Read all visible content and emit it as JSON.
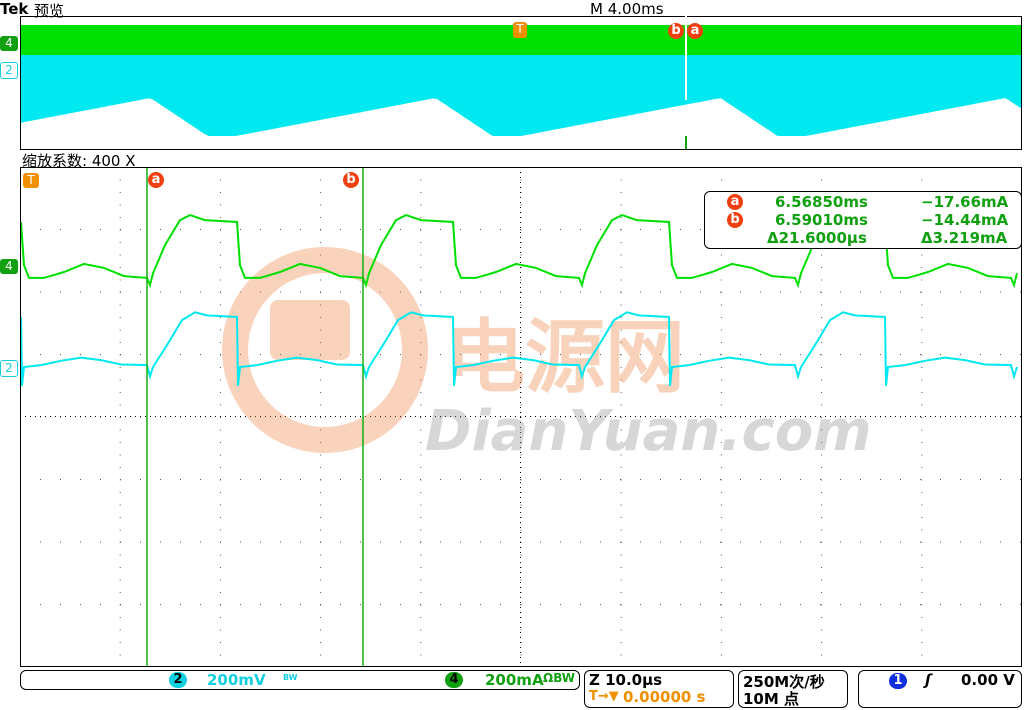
{
  "header": {
    "brand": "Tek",
    "mode": "预览",
    "timebase": "M 4.00ms"
  },
  "zoom": {
    "label": "缩放系数: 400 X"
  },
  "markers": {
    "ch4": "4",
    "ch2": "2",
    "trigger": "T",
    "cursor_a": "a",
    "cursor_b": "b"
  },
  "readout": {
    "a_label": "a",
    "a_time": "6.56850ms",
    "a_value": "−17.66mA",
    "b_label": "b",
    "b_time": "6.59010ms",
    "b_value": "−14.44mA",
    "delta_time": "Δ21.6000µs",
    "delta_value": "Δ3.219mA"
  },
  "status": {
    "ch2_num": "2",
    "ch2_scale": "200mV",
    "ch2_suffix": "BW",
    "ch4_num": "4",
    "ch4_scale": "200mA",
    "ch4_suffix": "ΩBW",
    "zoom_scale": "Z 10.0µs",
    "trigger_pos": "0.00000 s",
    "trigger_pos_icon": "T→▼",
    "sample_rate": "250M次/秒",
    "record_length": "10M 点",
    "trig_ch": "1",
    "trig_slope_icon": "rising-edge",
    "trig_level": "0.00 V"
  },
  "watermark": {
    "cn": "电源网",
    "en": "DianYuan.com"
  },
  "colors": {
    "ch4": "#00e000",
    "ch2": "#00e8f0",
    "cursor": "#f04010",
    "trigger": "#f09000",
    "readout": "#10a010"
  },
  "chart_data": {
    "type": "line",
    "xlabel": "",
    "ylabel": "",
    "x_unit": "ms",
    "xlim": [
      6.5558,
      6.656
    ],
    "x_per_div": "10.0µs",
    "grid": true,
    "cursors": {
      "a": 6.5685,
      "b": 6.5901
    },
    "series": [
      {
        "name": "4",
        "unit": "mA",
        "per_div": 200,
        "period_us": 21.6,
        "cycle_start_ms": 6.5469,
        "cycle": [
          [
            0,
            -35
          ],
          [
            0.3,
            -58
          ],
          [
            0.6,
            -20
          ],
          [
            1.8,
            70
          ],
          [
            3.3,
            150
          ],
          [
            4.3,
            166
          ],
          [
            5.8,
            150
          ],
          [
            9,
            144
          ],
          [
            9.3,
            6
          ],
          [
            9.8,
            -35
          ],
          [
            11.3,
            -35
          ],
          [
            13.3,
            -16
          ],
          [
            15.3,
            10
          ],
          [
            17.3,
            -3
          ],
          [
            19.3,
            -29
          ],
          [
            21.6,
            -35
          ]
        ]
      },
      {
        "name": "2",
        "unit": "mV",
        "per_div": 200,
        "period_us": 21.6,
        "cycle_start_ms": 6.5469,
        "cycle": [
          [
            0,
            6
          ],
          [
            0.3,
            -30
          ],
          [
            0.6,
            0
          ],
          [
            2,
            70
          ],
          [
            3.5,
            150
          ],
          [
            4.8,
            175
          ],
          [
            6,
            165
          ],
          [
            9,
            160
          ],
          [
            9.1,
            -60
          ],
          [
            9.3,
            0
          ],
          [
            11,
            6
          ],
          [
            13,
            20
          ],
          [
            15,
            30
          ],
          [
            17,
            22
          ],
          [
            19,
            8
          ],
          [
            21.6,
            6
          ]
        ]
      }
    ]
  }
}
